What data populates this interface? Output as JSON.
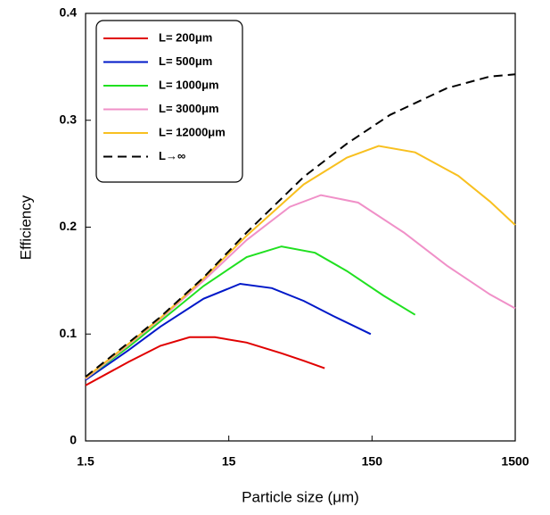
{
  "chart_data": {
    "type": "line",
    "xlabel": "Particle size (μm)",
    "ylabel": "Efficiency",
    "xscale": "log",
    "xlim": [
      1.5,
      1500
    ],
    "xticks": [
      1.5,
      15,
      150,
      1500
    ],
    "ylim": [
      0,
      0.4
    ],
    "yticks": [
      0,
      0.1,
      0.2,
      0.3,
      0.4
    ],
    "legend": "upper-left",
    "series": [
      {
        "name": "L= 200μm",
        "color": "#e00000",
        "x": [
          1.5,
          3,
          5,
          8,
          12,
          20,
          35,
          50,
          70
        ],
        "values": [
          0.052,
          0.074,
          0.089,
          0.097,
          0.097,
          0.092,
          0.082,
          0.075,
          0.068
        ]
      },
      {
        "name": "L= 500μm",
        "color": "#0018c8",
        "x": [
          1.5,
          3,
          5,
          10,
          18,
          30,
          50,
          80,
          147
        ],
        "values": [
          0.057,
          0.085,
          0.107,
          0.133,
          0.147,
          0.143,
          0.131,
          0.117,
          0.1
        ]
      },
      {
        "name": "L= 1000μm",
        "color": "#20e020",
        "x": [
          1.5,
          3,
          5,
          10,
          20,
          35,
          60,
          100,
          180,
          300
        ],
        "values": [
          0.058,
          0.088,
          0.112,
          0.145,
          0.172,
          0.182,
          0.176,
          0.159,
          0.136,
          0.118
        ]
      },
      {
        "name": "L= 3000μm",
        "color": "#f090c8",
        "x": [
          1.5,
          3,
          5,
          10,
          20,
          40,
          66,
          120,
          250,
          500,
          1000,
          1500
        ],
        "values": [
          0.058,
          0.09,
          0.114,
          0.15,
          0.188,
          0.219,
          0.23,
          0.223,
          0.195,
          0.164,
          0.137,
          0.124
        ]
      },
      {
        "name": "L= 12000μm",
        "color": "#f8c020",
        "x": [
          1.5,
          3,
          5,
          10,
          20,
          50,
          100,
          167,
          300,
          600,
          1000,
          1500
        ],
        "values": [
          0.059,
          0.091,
          0.115,
          0.152,
          0.192,
          0.24,
          0.265,
          0.276,
          0.27,
          0.248,
          0.224,
          0.202
        ]
      },
      {
        "name": "L→∞",
        "color": "#000000",
        "dashed": true,
        "x": [
          1.5,
          3,
          5,
          10,
          20,
          50,
          100,
          200,
          500,
          1000,
          1500
        ],
        "values": [
          0.06,
          0.092,
          0.116,
          0.153,
          0.195,
          0.247,
          0.278,
          0.305,
          0.33,
          0.341,
          0.343
        ]
      }
    ]
  }
}
